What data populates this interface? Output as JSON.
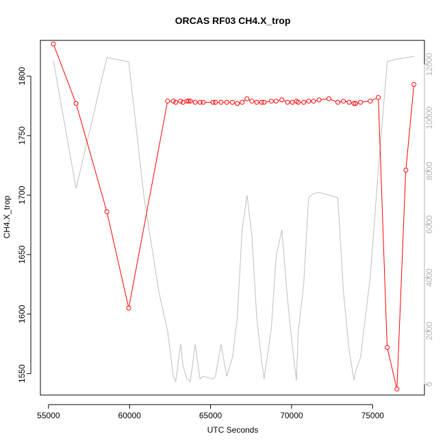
{
  "chart_data": {
    "type": "line",
    "title": "ORCAS RF03 CH4.X_trop",
    "xlabel": "UTC Seconds",
    "ylabel": "CH4.X_trop",
    "y2label": "",
    "xlim": [
      54500,
      78200
    ],
    "ylim": [
      1532,
      1830
    ],
    "y2lim": [
      -400,
      12900
    ],
    "xticks": [
      55000,
      60000,
      65000,
      70000,
      75000
    ],
    "yticks": [
      1550,
      1600,
      1650,
      1700,
      1750,
      1800
    ],
    "y2ticks": [
      0,
      2000,
      4000,
      6000,
      8000,
      10000,
      12000
    ],
    "grid": false,
    "legend": "none",
    "colors": {
      "primary": "#ff0000",
      "secondary": "#bebebe",
      "right_axis": "#b3b3b3"
    },
    "series": [
      {
        "axis": "left",
        "style": "points-and-lines",
        "x": [
          55300,
          56700,
          58600,
          59950,
          62350,
          62700,
          62850,
          63150,
          63300,
          63550,
          63650,
          63750,
          64050,
          64350,
          64550,
          65150,
          65300,
          65650,
          66000,
          66350,
          66650,
          66950,
          67250,
          67550,
          67850,
          68150,
          68300,
          68750,
          69050,
          69400,
          69750,
          70050,
          70300,
          70400,
          70750,
          71050,
          71350,
          71700,
          72300,
          72850,
          73200,
          73550,
          73850,
          73950,
          74250,
          74850,
          75350,
          75900,
          76500,
          77050,
          77550
        ],
        "y": [
          1827,
          1777,
          1686,
          1605,
          1779,
          1779,
          1778,
          1779,
          1778,
          1779,
          1779,
          1779,
          1778,
          1778,
          1778,
          1778,
          1778,
          1778,
          1778,
          1778,
          1777,
          1778,
          1781,
          1779,
          1778,
          1778,
          1778,
          1779,
          1779,
          1780,
          1778,
          1778,
          1779,
          1778,
          1778,
          1779,
          1779,
          1780,
          1781,
          1778,
          1779,
          1778,
          1777,
          1777,
          1778,
          1779,
          1782,
          1572,
          1537,
          1721,
          1793
        ]
      },
      {
        "axis": "right",
        "style": "line",
        "x": [
          55300,
          56700,
          58600,
          59950,
          60900,
          61800,
          62350,
          62700,
          62850,
          63150,
          63300,
          63550,
          63750,
          64050,
          64350,
          64550,
          65150,
          65300,
          65650,
          66000,
          66350,
          66650,
          66950,
          67250,
          67550,
          67850,
          68150,
          68300,
          68750,
          69050,
          69400,
          69750,
          70050,
          70300,
          70400,
          70750,
          71050,
          71350,
          71700,
          72300,
          72850,
          73200,
          73550,
          73850,
          73950,
          74250,
          74850,
          75350,
          75900,
          76500,
          77050,
          77550
        ],
        "y": [
          12150,
          7350,
          12250,
          12100,
          7000,
          3500,
          2000,
          300,
          100,
          1500,
          700,
          200,
          100,
          1500,
          200,
          300,
          200,
          300,
          1500,
          300,
          1000,
          2500,
          5800,
          7100,
          5600,
          2500,
          900,
          200,
          2100,
          4800,
          5800,
          3200,
          1400,
          150,
          1900,
          3800,
          7000,
          7150,
          7200,
          7100,
          7000,
          3500,
          1300,
          150,
          500,
          1000,
          4000,
          8000,
          12100,
          12200,
          12250,
          12300
        ]
      }
    ]
  }
}
